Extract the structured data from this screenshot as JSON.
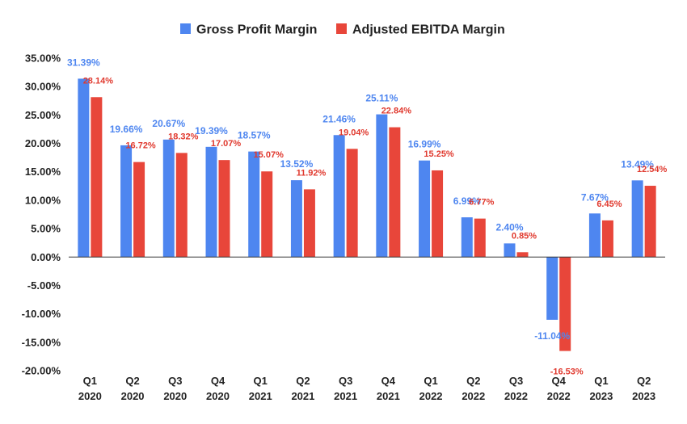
{
  "chart_data": {
    "type": "bar",
    "title": "",
    "xlabel": "",
    "ylabel": "",
    "ylim": [
      -20,
      35
    ],
    "yticks": [
      35,
      30,
      25,
      20,
      15,
      10,
      5,
      0,
      -5,
      -10,
      -15,
      -20
    ],
    "ytick_labels": [
      "35.00%",
      "30.00%",
      "25.00%",
      "20.00%",
      "15.00%",
      "10.00%",
      "5.00%",
      "0.00%",
      "-5.00%",
      "-10.00%",
      "-15.00%",
      "-20.00%"
    ],
    "grid": false,
    "legend_position": "top-center",
    "categories": [
      {
        "q": "Q1",
        "y": "2020"
      },
      {
        "q": "Q2",
        "y": "2020"
      },
      {
        "q": "Q3",
        "y": "2020"
      },
      {
        "q": "Q4",
        "y": "2020"
      },
      {
        "q": "Q1",
        "y": "2021"
      },
      {
        "q": "Q2",
        "y": "2021"
      },
      {
        "q": "Q3",
        "y": "2021"
      },
      {
        "q": "Q4",
        "y": "2021"
      },
      {
        "q": "Q1",
        "y": "2022"
      },
      {
        "q": "Q2",
        "y": "2022"
      },
      {
        "q": "Q3",
        "y": "2022"
      },
      {
        "q": "Q4",
        "y": "2022"
      },
      {
        "q": "Q1",
        "y": "2023"
      },
      {
        "q": "Q2",
        "y": "2023"
      }
    ],
    "series": [
      {
        "name": "Gross Profit Margin",
        "color": "#4e86f0",
        "label_color": "#4e86f0",
        "values": [
          31.39,
          19.66,
          20.67,
          19.39,
          18.57,
          13.52,
          21.46,
          25.11,
          16.99,
          6.99,
          2.4,
          -11.04,
          7.67,
          13.49
        ],
        "labels": [
          "31.39%",
          "19.66%",
          "20.67%",
          "19.39%",
          "18.57%",
          "13.52%",
          "21.46%",
          "25.11%",
          "16.99%",
          "6.99%",
          "2.40%",
          "-11.04%",
          "7.67%",
          "13.49%"
        ]
      },
      {
        "name": "Adjusted EBITDA Margin",
        "color": "#e8463a",
        "label_color": "#e0392e",
        "values": [
          28.14,
          16.72,
          18.32,
          17.07,
          15.07,
          11.92,
          19.04,
          22.84,
          15.25,
          6.77,
          0.85,
          -16.53,
          6.45,
          12.54
        ],
        "labels": [
          "28.14%",
          "16.72%",
          "18.32%",
          "17.07%",
          "15.07%",
          "11.92%",
          "19.04%",
          "22.84%",
          "15.25%",
          "6.77%",
          "0.85%",
          "-16.53%",
          "6.45%",
          "12.54%"
        ]
      }
    ]
  }
}
